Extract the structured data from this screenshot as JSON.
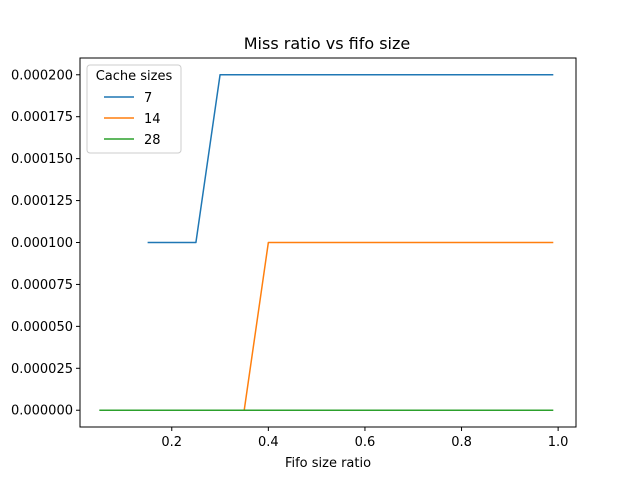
{
  "chart_data": {
    "type": "line",
    "title": "Miss ratio vs fifo size",
    "xlabel": "Fifo size ratio",
    "ylabel": "",
    "xlim": [
      0.01,
      1.037
    ],
    "ylim": [
      -1e-05,
      0.00021
    ],
    "x_ticks": [
      0.2,
      0.4,
      0.6,
      0.8,
      1.0
    ],
    "x_tick_labels": [
      "0.2",
      "0.4",
      "0.6",
      "0.8",
      "1.0"
    ],
    "y_ticks": [
      0,
      2.5e-05,
      5e-05,
      7.5e-05,
      0.0001,
      0.000125,
      0.00015,
      0.000175,
      0.0002
    ],
    "y_tick_labels": [
      "0.000000",
      "0.000025",
      "0.000050",
      "0.000075",
      "0.000100",
      "0.000125",
      "0.000150",
      "0.000175",
      "0.000200"
    ],
    "legend": {
      "title": "Cache sizes",
      "position": "top-left"
    },
    "grid": false,
    "series": [
      {
        "name": "7",
        "color": "#1f77b4",
        "x": [
          0.15,
          0.2,
          0.25,
          0.3,
          0.35,
          0.4,
          0.5,
          0.6,
          0.7,
          0.8,
          0.9,
          0.99
        ],
        "y": [
          0.0001,
          0.0001,
          0.0001,
          0.0002,
          0.0002,
          0.0002,
          0.0002,
          0.0002,
          0.0002,
          0.0002,
          0.0002,
          0.0002
        ]
      },
      {
        "name": "14",
        "color": "#ff7f0e",
        "x": [
          0.1,
          0.15,
          0.2,
          0.25,
          0.3,
          0.35,
          0.4,
          0.5,
          0.6,
          0.7,
          0.8,
          0.9,
          0.99
        ],
        "y": [
          0,
          0,
          0,
          0,
          0,
          0,
          0.0001,
          0.0001,
          0.0001,
          0.0001,
          0.0001,
          0.0001,
          0.0001
        ]
      },
      {
        "name": "28",
        "color": "#2ca02c",
        "x": [
          0.05,
          0.1,
          0.2,
          0.3,
          0.4,
          0.5,
          0.6,
          0.7,
          0.8,
          0.9,
          0.99
        ],
        "y": [
          0,
          0,
          0,
          0,
          0,
          0,
          0,
          0,
          0,
          0,
          0
        ]
      }
    ]
  }
}
